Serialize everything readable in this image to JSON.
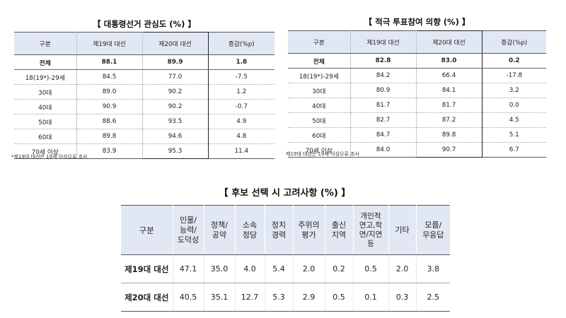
{
  "table1": {
    "title": "【 대통령선거 관심도 (%) 】",
    "headers": [
      "구분",
      "제19대 대선",
      "제20대 대선",
      "증감(%p)"
    ],
    "rows": [
      [
        "전체",
        "88.1",
        "89.9",
        "1.8"
      ],
      [
        "18(19*)-29세",
        "84.5",
        "77.0",
        "-7.5"
      ],
      [
        "30대",
        "89.0",
        "90.2",
        "1.2"
      ],
      [
        "40대",
        "90.9",
        "90.2",
        "-0.7"
      ],
      [
        "50대",
        "88.6",
        "93.5",
        "4.9"
      ],
      [
        "60대",
        "89.8",
        "94.6",
        "4.8"
      ],
      [
        "70세 이상",
        "83.9",
        "95.3",
        "11.4"
      ]
    ],
    "note": "*제19대 대선은 19세 이상으로 조사"
  },
  "table2": {
    "title": "【 적극 투표참여 의향 (%) 】",
    "headers": [
      "구분",
      "제19대 대선",
      "제20대 대선",
      "증감(%p)"
    ],
    "rows": [
      [
        "전체",
        "82.8",
        "83.0",
        "0.2"
      ],
      [
        "18(19*)-29세",
        "84.2",
        "66.4",
        "-17.8"
      ],
      [
        "30대",
        "80.9",
        "84.1",
        "3.2"
      ],
      [
        "40대",
        "81.7",
        "81.7",
        "0.0"
      ],
      [
        "50대",
        "82.7",
        "87.2",
        "4.5"
      ],
      [
        "60대",
        "84.7",
        "89.8",
        "5.1"
      ],
      [
        "70세 이상",
        "84.0",
        "90.7",
        "6.7"
      ]
    ],
    "note": "제19대 대선은 19세 이상으로 조사"
  },
  "table3": {
    "title": "【 후보 선택 시 고려사항 (%) 】",
    "headers": [
      "구분",
      "인물/\n능력/\n도덕성",
      "정책/\n공약",
      "소속\n정당",
      "정치\n경력",
      "주위의\n평가",
      "출신\n지역",
      "개인적\n연고,학\n연/지연\n등",
      "기타",
      "모름/\n무응답"
    ],
    "rows": [
      [
        "제19대 대선",
        "47.1",
        "35.0",
        "4.0",
        "5.4",
        "2.0",
        "0.2",
        "0.5",
        "2.0",
        "3.8"
      ],
      [
        "제20대 대선",
        "40.5",
        "35.1",
        "12.7",
        "5.3",
        "2.9",
        "0.5",
        "0.1",
        "0.3",
        "2.5"
      ]
    ]
  }
}
